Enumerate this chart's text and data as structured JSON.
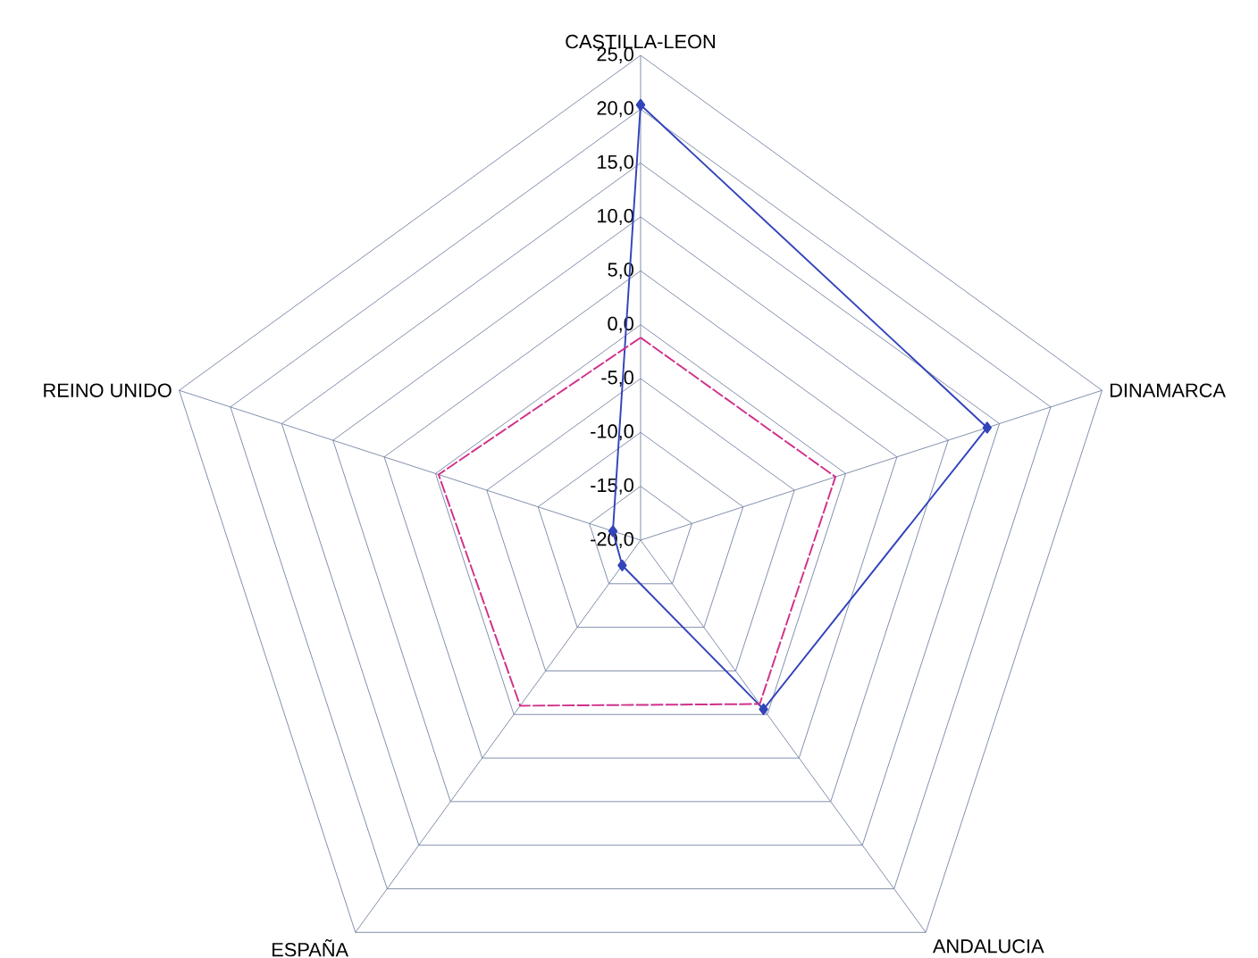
{
  "chart_data": {
    "type": "radar",
    "categories": [
      "CASTILLA-LEON",
      "DINAMARCA",
      "ANDALUCIA",
      "ESPAÑA",
      "REINO UNIDO"
    ],
    "ylim": [
      -20,
      25
    ],
    "yticks": [
      {
        "value": -20,
        "label": "-20,0"
      },
      {
        "value": -15,
        "label": "-15,0"
      },
      {
        "value": -10,
        "label": "-10,0"
      },
      {
        "value": -5,
        "label": "-5,0"
      },
      {
        "value": 0,
        "label": "0,0"
      },
      {
        "value": 5,
        "label": "5,0"
      },
      {
        "value": 10,
        "label": "10,0"
      },
      {
        "value": 15,
        "label": "15,0"
      },
      {
        "value": 20,
        "label": "20,0"
      },
      {
        "value": 25,
        "label": "25,0"
      }
    ],
    "grid": true,
    "legend": false,
    "series": [
      {
        "color": "#3344bb",
        "values": [
          20.4,
          13.8,
          -0.6,
          -17.1,
          -17.3
        ],
        "marker": "diamond",
        "line_style": "solid"
      },
      {
        "color": "#d0308a",
        "values": [
          -1.2,
          -1.0,
          -1.2,
          -1.0,
          -0.3
        ],
        "marker": "none",
        "line_style": "dashed"
      }
    ]
  }
}
